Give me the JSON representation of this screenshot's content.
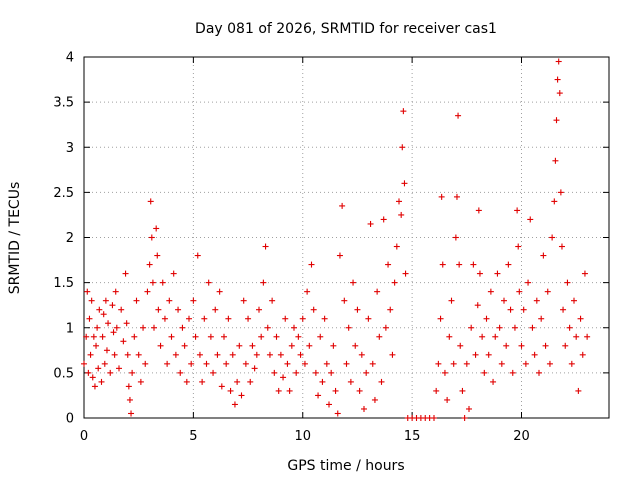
{
  "chart_data": {
    "type": "scatter",
    "title": "Day 081 of 2026, SRMTID for receiver cas1",
    "xlabel": "GPS time / hours",
    "ylabel": "SRMTID / TECUs",
    "xlim": [
      0,
      24
    ],
    "ylim": [
      0,
      4
    ],
    "xticks": [
      0,
      5,
      10,
      15,
      20
    ],
    "yticks": [
      0,
      0.5,
      1,
      1.5,
      2,
      2.5,
      3,
      3.5,
      4
    ],
    "xtick_labels": [
      "0",
      "5",
      "10",
      "15",
      "20"
    ],
    "ytick_labels": [
      "0",
      "0.5",
      "1",
      "1.5",
      "2",
      "2.5",
      "3",
      "3.5",
      "4"
    ],
    "grid": true,
    "marker": "+",
    "color": "#e00000",
    "series": [
      {
        "name": "cas1",
        "points": [
          [
            0.0,
            0.6
          ],
          [
            0.1,
            0.9
          ],
          [
            0.15,
            1.4
          ],
          [
            0.2,
            0.5
          ],
          [
            0.25,
            1.1
          ],
          [
            0.3,
            0.7
          ],
          [
            0.35,
            1.3
          ],
          [
            0.4,
            0.45
          ],
          [
            0.45,
            0.9
          ],
          [
            0.5,
            0.35
          ],
          [
            0.55,
            0.8
          ],
          [
            0.6,
            1.0
          ],
          [
            0.65,
            0.55
          ],
          [
            0.7,
            1.2
          ],
          [
            0.8,
            0.4
          ],
          [
            0.85,
            0.9
          ],
          [
            0.9,
            1.15
          ],
          [
            0.95,
            0.6
          ],
          [
            1.0,
            1.3
          ],
          [
            1.05,
            0.75
          ],
          [
            1.1,
            1.05
          ],
          [
            1.2,
            0.5
          ],
          [
            1.3,
            1.25
          ],
          [
            1.35,
            0.95
          ],
          [
            1.4,
            0.7
          ],
          [
            1.45,
            1.4
          ],
          [
            1.5,
            1.0
          ],
          [
            1.6,
            0.55
          ],
          [
            1.7,
            1.2
          ],
          [
            1.8,
            0.85
          ],
          [
            1.9,
            1.6
          ],
          [
            1.95,
            1.05
          ],
          [
            2.0,
            0.7
          ],
          [
            2.05,
            0.35
          ],
          [
            2.1,
            0.2
          ],
          [
            2.15,
            0.05
          ],
          [
            2.2,
            0.5
          ],
          [
            2.3,
            0.9
          ],
          [
            2.4,
            1.3
          ],
          [
            2.5,
            0.7
          ],
          [
            2.6,
            0.4
          ],
          [
            2.7,
            1.0
          ],
          [
            2.8,
            0.6
          ],
          [
            2.9,
            1.4
          ],
          [
            3.0,
            1.7
          ],
          [
            3.05,
            2.4
          ],
          [
            3.1,
            2.0
          ],
          [
            3.15,
            1.5
          ],
          [
            3.2,
            1.0
          ],
          [
            3.3,
            2.1
          ],
          [
            3.35,
            1.8
          ],
          [
            3.4,
            1.2
          ],
          [
            3.5,
            0.8
          ],
          [
            3.6,
            1.5
          ],
          [
            3.7,
            1.1
          ],
          [
            3.8,
            0.6
          ],
          [
            3.9,
            1.3
          ],
          [
            4.0,
            0.9
          ],
          [
            4.1,
            1.6
          ],
          [
            4.2,
            0.7
          ],
          [
            4.3,
            1.2
          ],
          [
            4.4,
            0.5
          ],
          [
            4.5,
            1.0
          ],
          [
            4.6,
            0.8
          ],
          [
            4.7,
            0.4
          ],
          [
            4.8,
            1.1
          ],
          [
            4.9,
            0.6
          ],
          [
            5.0,
            1.3
          ],
          [
            5.1,
            0.9
          ],
          [
            5.2,
            1.8
          ],
          [
            5.3,
            0.7
          ],
          [
            5.4,
            0.4
          ],
          [
            5.5,
            1.1
          ],
          [
            5.6,
            0.6
          ],
          [
            5.7,
            1.5
          ],
          [
            5.8,
            0.9
          ],
          [
            5.9,
            0.5
          ],
          [
            6.0,
            1.2
          ],
          [
            6.1,
            0.7
          ],
          [
            6.2,
            1.4
          ],
          [
            6.3,
            0.35
          ],
          [
            6.4,
            0.9
          ],
          [
            6.5,
            0.6
          ],
          [
            6.6,
            1.1
          ],
          [
            6.7,
            0.3
          ],
          [
            6.8,
            0.7
          ],
          [
            6.9,
            0.15
          ],
          [
            7.0,
            0.4
          ],
          [
            7.1,
            0.8
          ],
          [
            7.2,
            0.25
          ],
          [
            7.3,
            1.3
          ],
          [
            7.4,
            0.6
          ],
          [
            7.5,
            1.1
          ],
          [
            7.6,
            0.4
          ],
          [
            7.7,
            0.8
          ],
          [
            7.8,
            0.55
          ],
          [
            7.9,
            0.7
          ],
          [
            8.0,
            1.2
          ],
          [
            8.1,
            0.9
          ],
          [
            8.2,
            1.5
          ],
          [
            8.3,
            1.9
          ],
          [
            8.4,
            1.0
          ],
          [
            8.5,
            0.7
          ],
          [
            8.6,
            1.3
          ],
          [
            8.7,
            0.5
          ],
          [
            8.8,
            0.9
          ],
          [
            8.9,
            0.3
          ],
          [
            9.0,
            0.7
          ],
          [
            9.1,
            0.45
          ],
          [
            9.2,
            1.1
          ],
          [
            9.3,
            0.6
          ],
          [
            9.4,
            0.3
          ],
          [
            9.5,
            0.8
          ],
          [
            9.6,
            1.0
          ],
          [
            9.7,
            0.5
          ],
          [
            9.8,
            0.9
          ],
          [
            9.9,
            0.7
          ],
          [
            10.0,
            1.1
          ],
          [
            10.1,
            0.6
          ],
          [
            10.2,
            1.4
          ],
          [
            10.3,
            0.8
          ],
          [
            10.4,
            1.7
          ],
          [
            10.5,
            1.2
          ],
          [
            10.6,
            0.5
          ],
          [
            10.7,
            0.25
          ],
          [
            10.8,
            0.9
          ],
          [
            10.9,
            0.4
          ],
          [
            11.0,
            1.1
          ],
          [
            11.1,
            0.6
          ],
          [
            11.2,
            0.15
          ],
          [
            11.3,
            0.5
          ],
          [
            11.4,
            0.8
          ],
          [
            11.5,
            0.3
          ],
          [
            11.6,
            0.05
          ],
          [
            11.7,
            1.8
          ],
          [
            11.8,
            2.35
          ],
          [
            11.9,
            1.3
          ],
          [
            12.0,
            0.6
          ],
          [
            12.1,
            1.0
          ],
          [
            12.2,
            0.4
          ],
          [
            12.3,
            1.5
          ],
          [
            12.4,
            0.8
          ],
          [
            12.5,
            1.2
          ],
          [
            12.6,
            0.3
          ],
          [
            12.7,
            0.7
          ],
          [
            12.8,
            0.1
          ],
          [
            12.9,
            0.5
          ],
          [
            13.0,
            1.1
          ],
          [
            13.1,
            2.15
          ],
          [
            13.2,
            0.6
          ],
          [
            13.3,
            0.2
          ],
          [
            13.4,
            1.4
          ],
          [
            13.5,
            0.9
          ],
          [
            13.6,
            0.4
          ],
          [
            13.7,
            2.2
          ],
          [
            13.8,
            1.0
          ],
          [
            13.9,
            1.7
          ],
          [
            14.0,
            1.2
          ],
          [
            14.1,
            0.7
          ],
          [
            14.2,
            1.5
          ],
          [
            14.3,
            1.9
          ],
          [
            14.4,
            2.4
          ],
          [
            14.5,
            2.25
          ],
          [
            14.55,
            3.0
          ],
          [
            14.6,
            3.4
          ],
          [
            14.65,
            2.6
          ],
          [
            14.7,
            1.6
          ],
          [
            14.8,
            0.0
          ],
          [
            15.0,
            0.0
          ],
          [
            15.2,
            0.0
          ],
          [
            15.4,
            0.0
          ],
          [
            15.6,
            0.0
          ],
          [
            15.8,
            0.0
          ],
          [
            16.0,
            0.0
          ],
          [
            16.1,
            0.3
          ],
          [
            16.2,
            0.6
          ],
          [
            16.3,
            1.1
          ],
          [
            16.35,
            2.45
          ],
          [
            16.4,
            1.7
          ],
          [
            16.5,
            0.5
          ],
          [
            16.6,
            0.2
          ],
          [
            16.7,
            0.9
          ],
          [
            16.8,
            1.3
          ],
          [
            16.9,
            0.6
          ],
          [
            17.0,
            2.0
          ],
          [
            17.05,
            2.45
          ],
          [
            17.1,
            3.35
          ],
          [
            17.15,
            1.7
          ],
          [
            17.2,
            0.8
          ],
          [
            17.3,
            0.3
          ],
          [
            17.4,
            0.0
          ],
          [
            17.5,
            0.6
          ],
          [
            17.6,
            0.1
          ],
          [
            17.7,
            1.0
          ],
          [
            17.8,
            1.7
          ],
          [
            17.9,
            0.7
          ],
          [
            18.0,
            1.25
          ],
          [
            18.05,
            2.3
          ],
          [
            18.1,
            1.6
          ],
          [
            18.2,
            0.9
          ],
          [
            18.3,
            0.5
          ],
          [
            18.4,
            1.1
          ],
          [
            18.5,
            0.7
          ],
          [
            18.6,
            1.4
          ],
          [
            18.7,
            0.4
          ],
          [
            18.8,
            0.9
          ],
          [
            18.9,
            1.6
          ],
          [
            19.0,
            1.0
          ],
          [
            19.1,
            0.6
          ],
          [
            19.2,
            1.3
          ],
          [
            19.3,
            0.8
          ],
          [
            19.4,
            1.7
          ],
          [
            19.5,
            1.2
          ],
          [
            19.6,
            0.5
          ],
          [
            19.7,
            1.0
          ],
          [
            19.8,
            2.3
          ],
          [
            19.85,
            1.9
          ],
          [
            19.9,
            1.4
          ],
          [
            20.0,
            0.8
          ],
          [
            20.1,
            1.2
          ],
          [
            20.2,
            0.6
          ],
          [
            20.3,
            1.5
          ],
          [
            20.4,
            2.2
          ],
          [
            20.5,
            1.0
          ],
          [
            20.6,
            0.7
          ],
          [
            20.7,
            1.3
          ],
          [
            20.8,
            0.5
          ],
          [
            20.9,
            1.1
          ],
          [
            21.0,
            1.8
          ],
          [
            21.1,
            0.8
          ],
          [
            21.2,
            1.4
          ],
          [
            21.3,
            0.6
          ],
          [
            21.4,
            2.0
          ],
          [
            21.5,
            2.4
          ],
          [
            21.55,
            2.85
          ],
          [
            21.6,
            3.3
          ],
          [
            21.65,
            3.75
          ],
          [
            21.7,
            3.95
          ],
          [
            21.75,
            3.6
          ],
          [
            21.8,
            2.5
          ],
          [
            21.85,
            1.9
          ],
          [
            21.9,
            1.2
          ],
          [
            22.0,
            0.8
          ],
          [
            22.1,
            1.5
          ],
          [
            22.2,
            1.0
          ],
          [
            22.3,
            0.6
          ],
          [
            22.4,
            1.3
          ],
          [
            22.5,
            0.9
          ],
          [
            22.6,
            0.3
          ],
          [
            22.7,
            1.1
          ],
          [
            22.8,
            0.7
          ],
          [
            22.9,
            1.6
          ],
          [
            23.0,
            0.9
          ]
        ]
      }
    ]
  }
}
